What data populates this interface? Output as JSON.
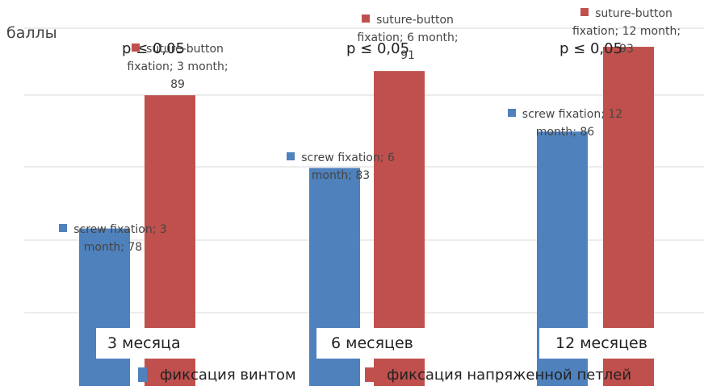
{
  "chart_data": {
    "type": "bar",
    "ylabel": "баллы",
    "categories": [
      "3 месяца",
      "6 месяцев",
      "12 месяцев"
    ],
    "series": [
      {
        "name": "фиксация винтом",
        "color": "#4f81bd",
        "values": [
          78,
          83,
          86
        ],
        "data_labels": [
          [
            "screw fixation; 3",
            "month; 78"
          ],
          [
            "screw fixation; 6",
            "month; 83"
          ],
          [
            "screw fixation; 12",
            "month; 86"
          ]
        ]
      },
      {
        "name": "фиксация напряженной петлей",
        "color": "#c0504d",
        "values": [
          89,
          91,
          93
        ],
        "data_labels": [
          [
            "suture-button",
            "fixation; 3 month;",
            "89"
          ],
          [
            "suture-button",
            "fixation; 6 month;",
            "91"
          ],
          [
            "suture-button",
            "fixation; 12 month;",
            "93"
          ]
        ]
      }
    ],
    "annotations": [
      "p ≤ 0,05",
      "p ≤ 0,05",
      "p ≤ 0,05"
    ],
    "ylim": [
      65,
      95
    ],
    "grid": true,
    "legend": "bottom"
  }
}
